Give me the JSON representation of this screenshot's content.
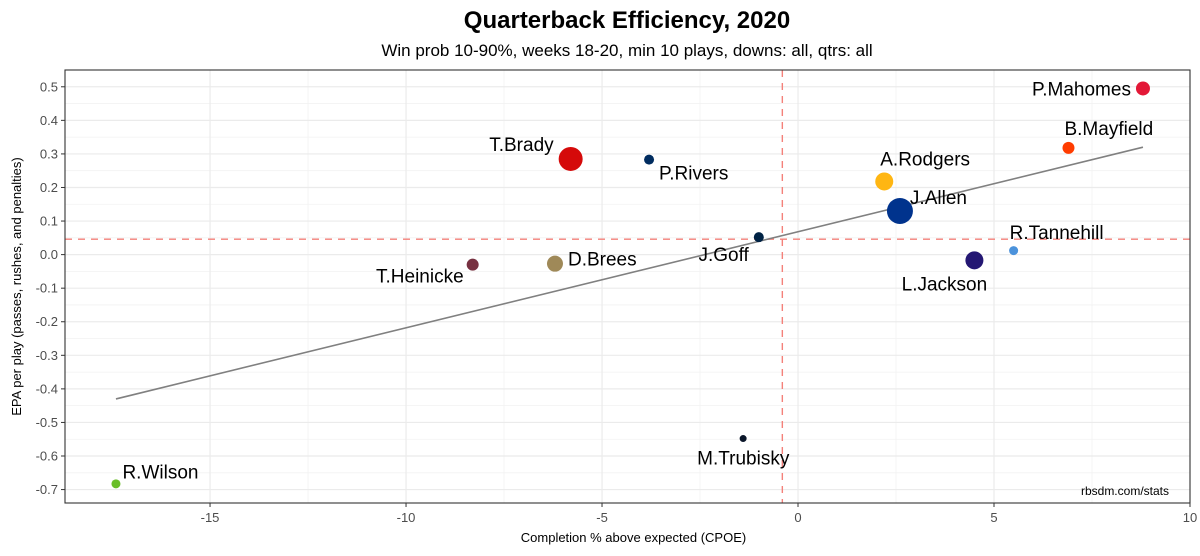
{
  "chart_data": {
    "type": "scatter",
    "title": "Quarterback Efficiency, 2020",
    "subtitle": "Win prob 10-90%, weeks 18-20, min 10 plays, downs: all, qtrs: all",
    "xlabel": "Completion % above expected (CPOE)",
    "ylabel": "EPA per play (passes, rushes, and penalties)",
    "caption": "rbsdm.com/stats",
    "xlim": [
      -18.7,
      10.0
    ],
    "ylim": [
      -0.74,
      0.55
    ],
    "x_ticks": [
      -15,
      -10,
      -5,
      0,
      5,
      10
    ],
    "y_ticks": [
      -0.7,
      -0.6,
      -0.5,
      -0.4,
      -0.3,
      -0.2,
      -0.1,
      0.0,
      0.1,
      0.2,
      0.3,
      0.4,
      0.5
    ],
    "x_tick_labels": [
      "-15",
      "-10",
      "-5",
      "0",
      "5",
      "10"
    ],
    "y_tick_labels": [
      "-0.7",
      "-0.6",
      "-0.5",
      "-0.4",
      "-0.3",
      "-0.2",
      "-0.1",
      "0.0",
      "0.1",
      "0.2",
      "0.3",
      "0.4",
      "0.5"
    ],
    "grid": true,
    "reference_lines": {
      "mean_x": -0.4,
      "mean_y": 0.046,
      "color": "#f4817a"
    },
    "trend_line": {
      "x": [
        -17.4,
        8.8
      ],
      "y": [
        -0.43,
        0.32
      ],
      "color": "#808080"
    },
    "points": [
      {
        "name": "P.Mahomes",
        "x": 8.8,
        "y": 0.495,
        "size": 7,
        "color": "#e31837",
        "label_pos": "left"
      },
      {
        "name": "B.Mayfield",
        "x": 6.9,
        "y": 0.318,
        "size": 6,
        "color": "#ff3c00",
        "label_pos": "above"
      },
      {
        "name": "T.Brady",
        "x": -5.8,
        "y": 0.285,
        "size": 12,
        "color": "#d50a0a",
        "label_pos": "upper-left"
      },
      {
        "name": "P.Rivers",
        "x": -3.8,
        "y": 0.283,
        "size": 5,
        "color": "#002c5f",
        "label_pos": "lower-right"
      },
      {
        "name": "A.Rodgers",
        "x": 2.2,
        "y": 0.218,
        "size": 9,
        "color": "#ffb612",
        "label_pos": "above"
      },
      {
        "name": "J.Allen",
        "x": 2.6,
        "y": 0.13,
        "size": 13,
        "color": "#00338d",
        "label_pos": "upper-right"
      },
      {
        "name": "R.Tannehill",
        "x": 5.5,
        "y": 0.012,
        "size": 4.5,
        "color": "#4b92db",
        "label_pos": "above"
      },
      {
        "name": "J.Goff",
        "x": -1.0,
        "y": 0.052,
        "size": 5,
        "color": "#002244",
        "label_pos": "lower-left"
      },
      {
        "name": "L.Jackson",
        "x": 4.5,
        "y": -0.017,
        "size": 9,
        "color": "#241773",
        "label_pos": "below"
      },
      {
        "name": "D.Brees",
        "x": -6.2,
        "y": -0.027,
        "size": 8,
        "color": "#9f8958",
        "label_pos": "right"
      },
      {
        "name": "T.Heinicke",
        "x": -8.3,
        "y": -0.03,
        "size": 6,
        "color": "#773141",
        "label_pos": "lower-left"
      },
      {
        "name": "M.Trubisky",
        "x": -1.4,
        "y": -0.548,
        "size": 3.5,
        "color": "#0b162a",
        "label_pos": "below"
      },
      {
        "name": "R.Wilson",
        "x": -17.4,
        "y": -0.683,
        "size": 4.5,
        "color": "#69be28",
        "label_pos": "upper-right"
      }
    ]
  }
}
